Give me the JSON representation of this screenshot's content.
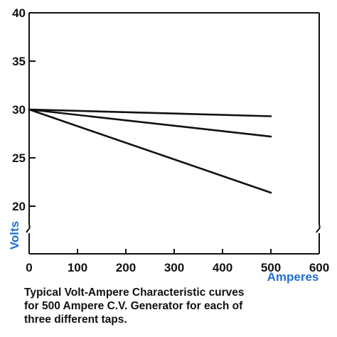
{
  "chart_data": {
    "type": "line",
    "xlabel": "Amperes",
    "ylabel": "Volts",
    "xlim": [
      0,
      600
    ],
    "ylim": [
      20,
      40
    ],
    "y_axis_break": true,
    "x_ticks": [
      0,
      100,
      200,
      300,
      400,
      500,
      600
    ],
    "y_ticks": [
      20,
      25,
      30,
      35,
      40
    ],
    "grid": false,
    "axis_label_color": "#1f6fd1",
    "line_color": "#111111",
    "series": [
      {
        "x": [
          0,
          500
        ],
        "y": [
          30,
          29.3
        ]
      },
      {
        "x": [
          0,
          500
        ],
        "y": [
          30,
          27.2
        ]
      },
      {
        "x": [
          0,
          500
        ],
        "y": [
          30,
          21.4
        ]
      }
    ]
  },
  "caption": [
    "Typical Volt-Ampere Characteristic curves",
    "for 500 Ampere C.V. Generator for each of",
    "three different taps."
  ]
}
